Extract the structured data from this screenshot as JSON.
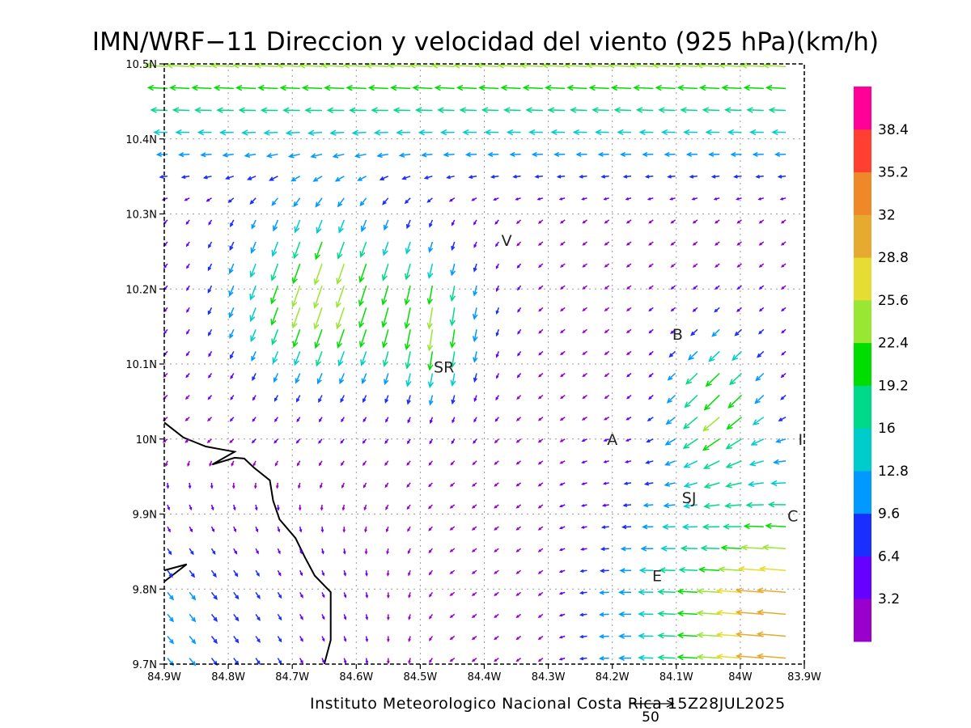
{
  "title": "IMN/WRF−11 Direccion y velocidad del viento (925 hPa)(km/h)",
  "footer": "Instituto Meteorologico Nacional Costa Rica  15Z28JUL2025",
  "reference_vector": {
    "label": "50",
    "value_kmh": 50
  },
  "lon_range": [
    -84.9,
    -83.9
  ],
  "lat_range": [
    9.7,
    10.5
  ],
  "lon_ticks": [
    {
      "value": -84.9,
      "label": "84.9W"
    },
    {
      "value": -84.8,
      "label": "84.8W"
    },
    {
      "value": -84.7,
      "label": "84.7W"
    },
    {
      "value": -84.6,
      "label": "84.6W"
    },
    {
      "value": -84.5,
      "label": "84.5W"
    },
    {
      "value": -84.4,
      "label": "84.4W"
    },
    {
      "value": -84.3,
      "label": "84.3W"
    },
    {
      "value": -84.2,
      "label": "84.2W"
    },
    {
      "value": -84.1,
      "label": "84.1W"
    },
    {
      "value": -84.0,
      "label": "84W"
    },
    {
      "value": -83.9,
      "label": "83.9W"
    }
  ],
  "lat_ticks": [
    {
      "value": 9.7,
      "label": "9.7N"
    },
    {
      "value": 9.8,
      "label": "9.8N"
    },
    {
      "value": 9.9,
      "label": "9.9N"
    },
    {
      "value": 10.0,
      "label": "10N"
    },
    {
      "value": 10.1,
      "label": "10.1N"
    },
    {
      "value": 10.2,
      "label": "10.2N"
    },
    {
      "value": 10.3,
      "label": "10.3N"
    },
    {
      "value": 10.4,
      "label": "10.4N"
    },
    {
      "value": 10.5,
      "label": "10.5N"
    }
  ],
  "places": [
    {
      "label": "V",
      "lon": -84.365,
      "lat": 10.265
    },
    {
      "label": "B",
      "lon": -84.098,
      "lat": 10.14
    },
    {
      "label": "SR",
      "lon": -84.463,
      "lat": 10.096
    },
    {
      "label": "A",
      "lon": -84.2,
      "lat": 10.0
    },
    {
      "label": "SJ",
      "lon": -84.08,
      "lat": 9.922
    },
    {
      "label": "C",
      "lon": -83.918,
      "lat": 9.898
    },
    {
      "label": "E",
      "lon": -84.13,
      "lat": 9.818
    },
    {
      "label": "I",
      "lon": -83.906,
      "lat": 10.0
    }
  ],
  "colorbar": {
    "colors": [
      "#9900cc",
      "#6600ff",
      "#1a2eff",
      "#0099ff",
      "#00cccc",
      "#00d98a",
      "#00dd00",
      "#99e633",
      "#e6dc33",
      "#e6aa30",
      "#ee8828",
      "#ff4030",
      "#ff0099"
    ],
    "labels": [
      "3.2",
      "6.4",
      "9.6",
      "12.8",
      "16",
      "19.2",
      "22.4",
      "25.6",
      "28.8",
      "32",
      "35.2",
      "38.4"
    ]
  },
  "coastline": [
    [
      -84.9,
      10.022
    ],
    [
      -84.87,
      10.002
    ],
    [
      -84.835,
      9.99
    ],
    [
      -84.81,
      9.986
    ],
    [
      -84.79,
      9.983
    ],
    [
      -84.825,
      9.966
    ],
    [
      -84.79,
      9.975
    ],
    [
      -84.775,
      9.974
    ],
    [
      -84.76,
      9.962
    ],
    [
      -84.735,
      9.945
    ],
    [
      -84.73,
      9.918
    ],
    [
      -84.72,
      9.893
    ],
    [
      -84.695,
      9.868
    ],
    [
      -84.68,
      9.842
    ],
    [
      -84.665,
      9.818
    ],
    [
      -84.64,
      9.796
    ],
    [
      -84.64,
      9.776
    ],
    [
      -84.64,
      9.732
    ],
    [
      -84.65,
      9.7
    ]
  ],
  "peninsula": [
    [
      -84.9,
      9.825
    ],
    [
      -84.865,
      9.833
    ],
    [
      -84.9,
      9.81
    ]
  ]
}
